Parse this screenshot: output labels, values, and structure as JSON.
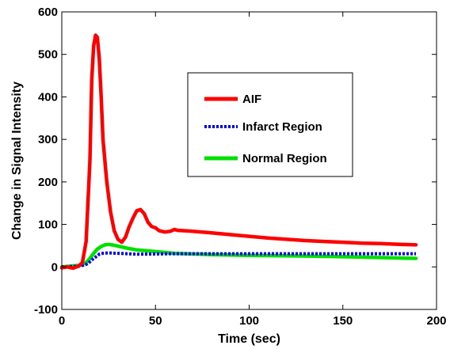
{
  "chart_data": {
    "type": "line",
    "title": "",
    "xlabel": "Time (sec)",
    "ylabel": "Change in Signal Intensity",
    "xlim": [
      0,
      200
    ],
    "ylim": [
      -100,
      600
    ],
    "xticks": [
      0,
      50,
      100,
      150,
      200
    ],
    "yticks": [
      -100,
      0,
      100,
      200,
      300,
      400,
      500,
      600
    ],
    "grid": false,
    "legend_position": "upper-right-inside",
    "series": [
      {
        "name": "AIF",
        "color": "#ff0000",
        "style": "solid",
        "x": [
          0,
          3,
          6,
          9,
          11,
          13,
          15,
          16,
          17,
          18,
          19,
          20,
          21,
          22,
          24,
          26,
          28,
          30,
          32,
          34,
          36,
          38,
          40,
          42,
          44,
          46,
          48,
          50,
          52,
          55,
          58,
          60,
          62,
          66,
          70,
          80,
          90,
          100,
          110,
          120,
          130,
          140,
          150,
          160,
          170,
          180,
          189
        ],
        "y": [
          -2,
          0,
          -3,
          2,
          10,
          60,
          250,
          440,
          520,
          545,
          540,
          490,
          400,
          300,
          200,
          130,
          85,
          65,
          58,
          70,
          95,
          115,
          132,
          135,
          125,
          105,
          95,
          92,
          85,
          82,
          84,
          88,
          86,
          85,
          84,
          80,
          76,
          72,
          68,
          65,
          62,
          60,
          58,
          56,
          55,
          53,
          52
        ]
      },
      {
        "name": "Infarct Region",
        "color": "#0000ff",
        "style": "dotted",
        "x": [
          0,
          5,
          10,
          13,
          15,
          17,
          19,
          20,
          22,
          25,
          30,
          40,
          60,
          80,
          100,
          120,
          140,
          160,
          180,
          189
        ],
        "y": [
          0,
          1,
          2,
          6,
          12,
          20,
          26,
          30,
          32,
          33,
          32,
          30,
          31,
          31,
          31,
          31,
          31,
          31,
          31,
          31
        ]
      },
      {
        "name": "Normal Region",
        "color": "#00e000",
        "style": "solid",
        "x": [
          0,
          5,
          10,
          13,
          15,
          17,
          19,
          21,
          23,
          25,
          28,
          31,
          35,
          40,
          50,
          60,
          80,
          100,
          120,
          140,
          160,
          180,
          189
        ],
        "y": [
          0,
          2,
          4,
          10,
          20,
          32,
          42,
          48,
          52,
          53,
          51,
          48,
          44,
          40,
          36,
          32,
          29,
          27,
          26,
          25,
          23,
          21,
          20
        ]
      }
    ]
  }
}
